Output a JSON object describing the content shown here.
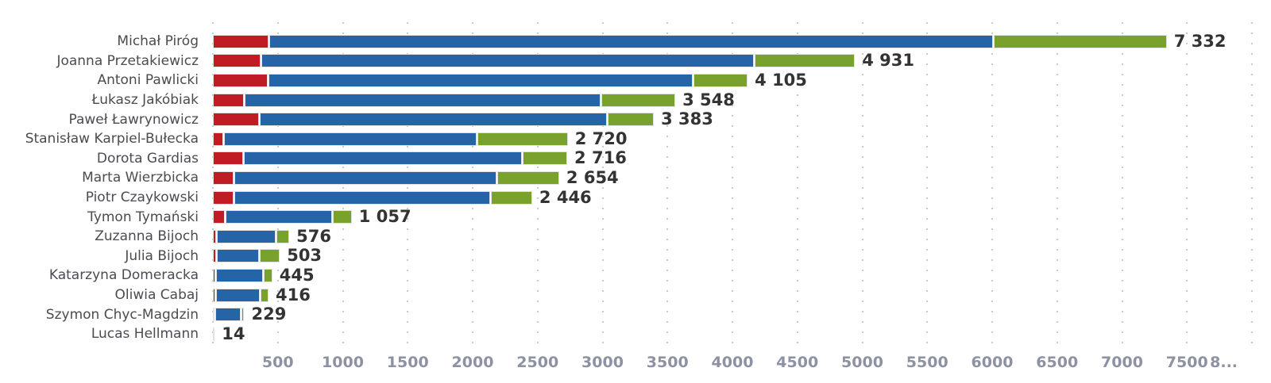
{
  "chart_data": {
    "type": "bar",
    "orientation": "horizontal",
    "stacked": true,
    "title": "",
    "xlabel": "",
    "ylabel": "",
    "xlim": [
      0,
      8000
    ],
    "grid": "dotted-vertical",
    "legend": "none",
    "categories": [
      "Michał Piróg",
      "Joanna Przetakiewicz",
      "Antoni Pawlicki",
      "Łukasz Jakóbiak",
      "Paweł Ławrynowicz",
      "Stanisław Karpiel-Bułecka",
      "Dorota Gardias",
      "Marta Wierzbicka",
      "Piotr Czaykowski",
      "Tymon Tymański",
      "Zuzanna Bijoch",
      "Julia Bijoch",
      "Katarzyna Domeracka",
      "Oliwia Cabaj",
      "Szymon Chyc-Magdzin",
      "Lucas Hellmann"
    ],
    "series": [
      {
        "name": "red-segment",
        "color": "#bf1c23",
        "values": [
          430,
          370,
          420,
          240,
          355,
          80,
          230,
          160,
          158,
          90,
          25,
          23,
          20,
          20,
          12,
          0
        ]
      },
      {
        "name": "blue-segment",
        "color": "#2565a7",
        "values": [
          5570,
          3790,
          3270,
          2740,
          2675,
          1945,
          2145,
          2015,
          1970,
          820,
          450,
          325,
          360,
          336,
          195,
          14
        ]
      },
      {
        "name": "green-segment",
        "color": "#79a22d",
        "values": [
          1332,
          771,
          415,
          568,
          353,
          695,
          341,
          479,
          318,
          147,
          101,
          155,
          65,
          60,
          22,
          0
        ]
      }
    ],
    "totals": [
      7332,
      4931,
      4105,
      3548,
      3383,
      2720,
      2716,
      2654,
      2446,
      1057,
      576,
      503,
      445,
      416,
      229,
      14
    ],
    "total_labels": [
      "7 332",
      "4 931",
      "4 105",
      "3 548",
      "3 383",
      "2 720",
      "2 716",
      "2 654",
      "2 446",
      "1 057",
      "576",
      "503",
      "445",
      "416",
      "229",
      "14"
    ],
    "gridline_values": [
      0,
      500,
      1000,
      1500,
      2000,
      2500,
      3000,
      3500,
      4000,
      4500,
      5000,
      5500,
      6000,
      6500,
      7000,
      7500,
      8000
    ],
    "xticks": [
      {
        "value": 500,
        "label": "500"
      },
      {
        "value": 1000,
        "label": "1000"
      },
      {
        "value": 1500,
        "label": "1500"
      },
      {
        "value": 2000,
        "label": "2000"
      },
      {
        "value": 2500,
        "label": "2500"
      },
      {
        "value": 3000,
        "label": "3000"
      },
      {
        "value": 3500,
        "label": "3500"
      },
      {
        "value": 4000,
        "label": "4000"
      },
      {
        "value": 4500,
        "label": "4500"
      },
      {
        "value": 5000,
        "label": "5000"
      },
      {
        "value": 5500,
        "label": "5500"
      },
      {
        "value": 6000,
        "label": "6000"
      },
      {
        "value": 6500,
        "label": "6500"
      },
      {
        "value": 7000,
        "label": "7000"
      },
      {
        "value": 7500,
        "label": "7500"
      },
      {
        "value": 8000,
        "label": "8...",
        "edge": true
      }
    ],
    "colors": {
      "category_text": "#4b4b52",
      "value_text": "#333333",
      "axis_text": "#8d92a3",
      "grid_dot": "#c9c9cc",
      "background": "#ffffff"
    }
  }
}
